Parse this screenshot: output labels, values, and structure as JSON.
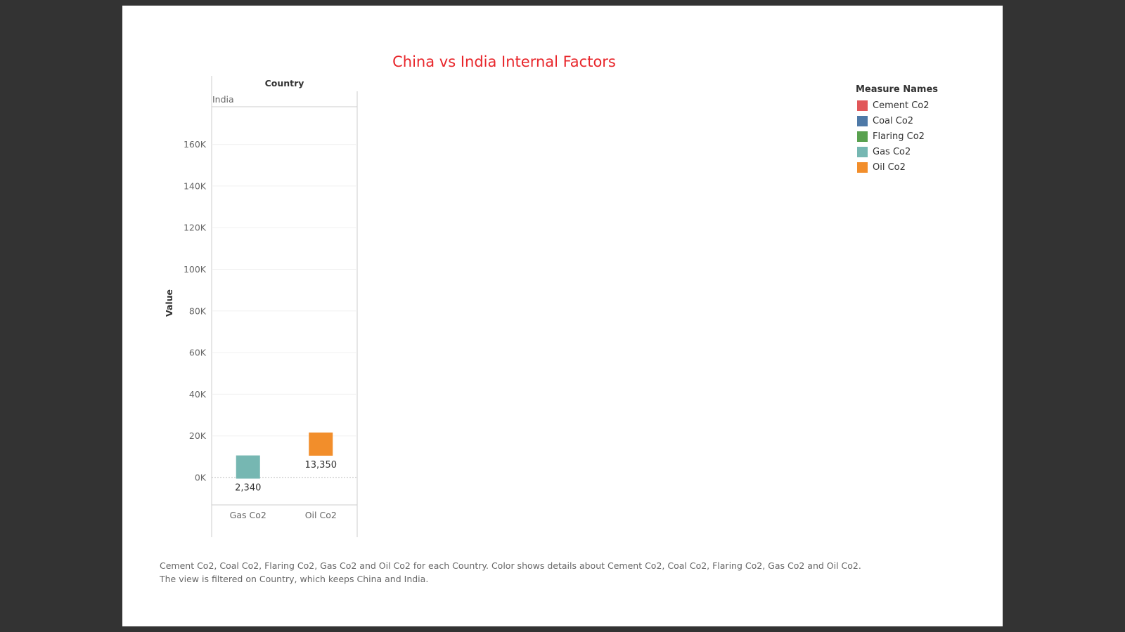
{
  "chart_data": {
    "type": "bar",
    "title": "China vs India Internal Factors",
    "column_header": "Country",
    "panel_label": "India",
    "ylabel": "Value",
    "ylim": [
      -15000,
      172000
    ],
    "yticks": [
      0,
      20000,
      40000,
      60000,
      80000,
      100000,
      120000,
      140000,
      160000
    ],
    "ytick_labels": [
      "0K",
      "20K",
      "40K",
      "60K",
      "80K",
      "100K",
      "120K",
      "140K",
      "160K"
    ],
    "grid": true,
    "legend_position": "top-right",
    "categories": [
      "Gas Co2",
      "Oil Co2"
    ],
    "values": [
      2340,
      13350
    ],
    "value_labels": [
      "2,340",
      "13,350"
    ],
    "colors": [
      "#76b7b2",
      "#f28e2b"
    ],
    "legend": {
      "title": "Measure Names",
      "items": [
        {
          "label": "Cement Co2",
          "color": "#e15759"
        },
        {
          "label": "Coal Co2",
          "color": "#4e79a7"
        },
        {
          "label": "Flaring Co2",
          "color": "#59a14f"
        },
        {
          "label": "Gas Co2",
          "color": "#76b7b2"
        },
        {
          "label": "Oil Co2",
          "color": "#f28e2b"
        }
      ]
    }
  },
  "caption": {
    "line1": "Cement Co2, Coal Co2, Flaring Co2, Gas Co2 and Oil Co2 for each Country.  Color shows details about Cement Co2, Coal Co2, Flaring Co2, Gas Co2 and Oil Co2.",
    "line2": "The view is filtered on Country, which keeps China and India."
  }
}
